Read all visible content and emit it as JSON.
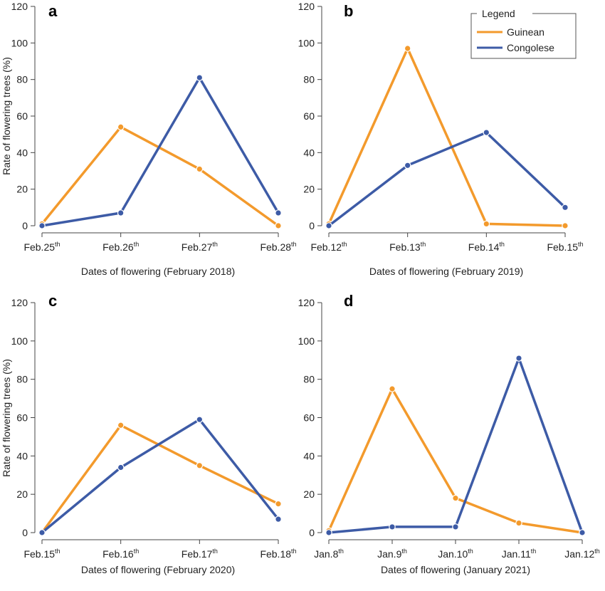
{
  "legend": {
    "title": "Legend",
    "items": [
      {
        "label": "Guinean",
        "color": "#F39A2C"
      },
      {
        "label": "Congolese",
        "color": "#3D5BA6"
      }
    ]
  },
  "chart_data": [
    {
      "type": "line",
      "panel": "a",
      "categories": [
        "Feb.25th",
        "Feb.26th",
        "Feb.27th",
        "Feb.28th"
      ],
      "category_parts": [
        [
          "Feb.25",
          "th"
        ],
        [
          "Feb.26",
          "th"
        ],
        [
          "Feb.27",
          "th"
        ],
        [
          "Feb.28",
          "th"
        ]
      ],
      "xlabel": "Dates of flowering (February 2018)",
      "ylabel": "Rate of flowering trees (%)",
      "ylim": [
        0,
        120
      ],
      "yticks": [
        0,
        20,
        40,
        60,
        80,
        100,
        120
      ],
      "series": [
        {
          "name": "Guinean",
          "color": "#F39A2C",
          "values": [
            1,
            54,
            31,
            0
          ]
        },
        {
          "name": "Congolese",
          "color": "#3D5BA6",
          "values": [
            0,
            7,
            81,
            7
          ]
        }
      ]
    },
    {
      "type": "line",
      "panel": "b",
      "categories": [
        "Feb.12th",
        "Feb.13th",
        "Feb.14th",
        "Feb.15th"
      ],
      "category_parts": [
        [
          "Feb.12",
          "th"
        ],
        [
          "Feb.13",
          "th"
        ],
        [
          "Feb.14",
          "th"
        ],
        [
          "Feb.15",
          "th"
        ]
      ],
      "xlabel": "Dates of flowering (February 2019)",
      "ylabel": "",
      "ylim": [
        0,
        120
      ],
      "yticks": [
        0,
        20,
        40,
        60,
        80,
        100,
        120
      ],
      "series": [
        {
          "name": "Guinean",
          "color": "#F39A2C",
          "values": [
            1,
            97,
            1,
            0
          ]
        },
        {
          "name": "Congolese",
          "color": "#3D5BA6",
          "values": [
            0,
            33,
            51,
            10
          ]
        }
      ]
    },
    {
      "type": "line",
      "panel": "c",
      "categories": [
        "Feb.15th",
        "Feb.16th",
        "Feb.17th",
        "Feb.18th"
      ],
      "category_parts": [
        [
          "Feb.15",
          "th"
        ],
        [
          "Feb.16",
          "th"
        ],
        [
          "Feb.17",
          "th"
        ],
        [
          "Feb.18",
          "th"
        ]
      ],
      "xlabel": "Dates of flowering (February 2020)",
      "ylabel": "Rate of flowering trees (%)",
      "ylim": [
        0,
        120
      ],
      "yticks": [
        0,
        20,
        40,
        60,
        80,
        100,
        120
      ],
      "series": [
        {
          "name": "Guinean",
          "color": "#F39A2C",
          "values": [
            0,
            56,
            35,
            15
          ]
        },
        {
          "name": "Congolese",
          "color": "#3D5BA6",
          "values": [
            0,
            34,
            59,
            7
          ]
        }
      ]
    },
    {
      "type": "line",
      "panel": "d",
      "categories": [
        "Jan.8th",
        "Jan.9th",
        "Jan.10th",
        "Jan.11th",
        "Jan.12th"
      ],
      "category_parts": [
        [
          "Jan.8",
          "th"
        ],
        [
          "Jan.9",
          "th"
        ],
        [
          "Jan.10",
          "th"
        ],
        [
          "Jan.11",
          "th"
        ],
        [
          "Jan.12",
          "th"
        ]
      ],
      "xlabel": "Dates of flowering (January 2021)",
      "ylabel": "",
      "ylim": [
        0,
        120
      ],
      "yticks": [
        0,
        20,
        40,
        60,
        80,
        100,
        120
      ],
      "series": [
        {
          "name": "Guinean",
          "color": "#F39A2C",
          "values": [
            1,
            75,
            18,
            5,
            0
          ]
        },
        {
          "name": "Congolese",
          "color": "#3D5BA6",
          "values": [
            0,
            3,
            3,
            91,
            0
          ]
        }
      ]
    }
  ]
}
